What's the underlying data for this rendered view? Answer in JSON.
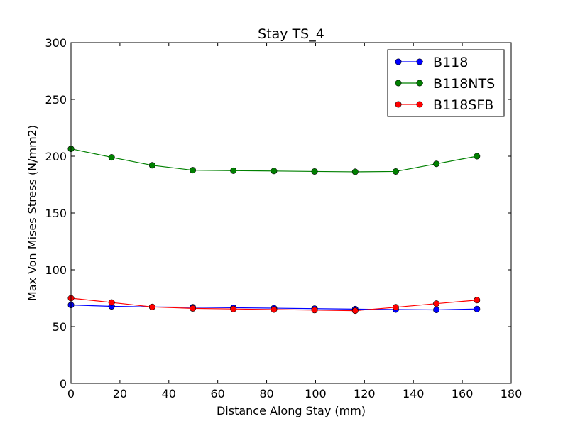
{
  "chart_data": {
    "type": "line",
    "title": "Stay TS_4",
    "xlabel": "Distance Along Stay (mm)",
    "ylabel": "Max Von Mises Stress (N/mm2)",
    "xlim": [
      0,
      180
    ],
    "ylim": [
      0,
      300
    ],
    "xticks": [
      0,
      20,
      40,
      60,
      80,
      100,
      120,
      140,
      160,
      180
    ],
    "yticks": [
      0,
      50,
      100,
      150,
      200,
      250,
      300
    ],
    "grid": false,
    "legend_position": "top-right",
    "x": [
      0,
      16.6,
      33.2,
      49.8,
      66.4,
      83,
      99.6,
      116.2,
      132.8,
      149.4,
      166
    ],
    "series": [
      {
        "name": "B118",
        "color": "#0000ff",
        "values": [
          69,
          67.8,
          67.3,
          67,
          66.6,
          66.2,
          65.8,
          65.4,
          65,
          64.7,
          65.5
        ]
      },
      {
        "name": "B118NTS",
        "color": "#008000",
        "values": [
          206.5,
          199,
          192,
          187.7,
          187.3,
          187,
          186.6,
          186.3,
          186.6,
          193.3,
          200
        ]
      },
      {
        "name": "B118SFB",
        "color": "#ff0000",
        "values": [
          75,
          71.2,
          67.3,
          66,
          65.5,
          65,
          64.5,
          64,
          67,
          70.2,
          73.3
        ]
      }
    ]
  }
}
